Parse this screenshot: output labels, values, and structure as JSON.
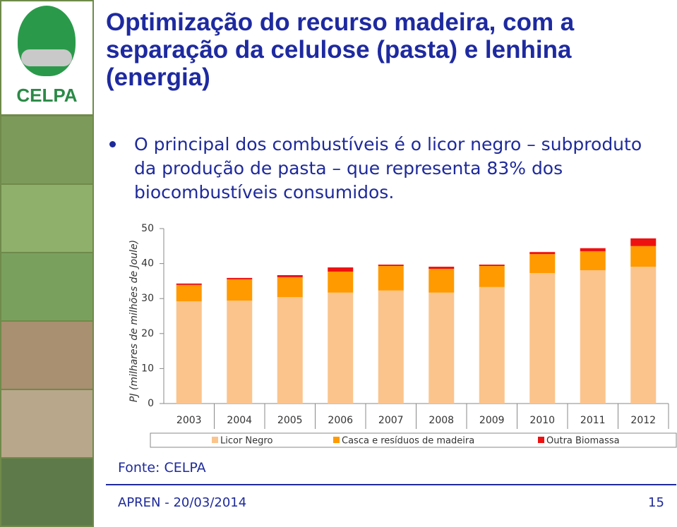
{
  "slide": {
    "title": "Optimização do recurso madeira, com a separação da celulose (pasta) e lenhina (energia)",
    "bullet": "O principal dos combustíveis é o licor negro – subproduto da produção de pasta – que representa 83% dos biocombustíveis consumidos.",
    "logo": "CELPA",
    "source": "Fonte: CELPA",
    "footer": "APREN - 20/03/2014",
    "page_number": 15
  },
  "chart_data": {
    "type": "stacked_bar",
    "y_label": "PJ (milhares de milhões de Joule)",
    "categories": [
      "2003",
      "2004",
      "2005",
      "2006",
      "2007",
      "2008",
      "2009",
      "2010",
      "2011",
      "2012"
    ],
    "series": [
      {
        "name": "Licor Negro",
        "color": "#fbc48c",
        "values": [
          29.2,
          29.4,
          30.4,
          31.7,
          32.3,
          31.7,
          33.3,
          37.3,
          38.1,
          39.1
        ]
      },
      {
        "name": "Casca e resíduos de madeira",
        "color": "#ff9a00",
        "values": [
          4.7,
          6.1,
          5.7,
          6.0,
          7.0,
          6.8,
          6.0,
          5.4,
          5.4,
          5.9
        ]
      },
      {
        "name": "Outra Biomassa",
        "color": "#ee1111",
        "values": [
          0.4,
          0.4,
          0.6,
          1.2,
          0.4,
          0.6,
          0.4,
          0.6,
          0.9,
          2.2
        ]
      }
    ],
    "ylim": [
      0,
      50
    ],
    "yticks": [
      0,
      10,
      20,
      30,
      40,
      50
    ],
    "legend": "bottom"
  }
}
